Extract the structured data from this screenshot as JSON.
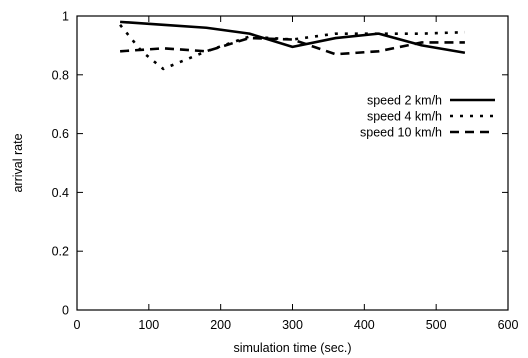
{
  "chart_data": {
    "type": "line",
    "title": "",
    "xlabel": "simulation time (sec.)",
    "ylabel": "arrival rate",
    "xlim": [
      0,
      600
    ],
    "ylim": [
      0,
      1
    ],
    "x_ticks": [
      0,
      100,
      200,
      300,
      400,
      500,
      600
    ],
    "y_ticks": [
      0,
      0.2,
      0.4,
      0.6,
      0.8,
      1
    ],
    "x_tick_labels": [
      "0",
      "100",
      "200",
      "300",
      "400",
      "500",
      "600"
    ],
    "y_tick_labels": [
      "0",
      "0.2",
      "0.4",
      "0.6",
      "0.8",
      "1"
    ],
    "grid": false,
    "legend_position": "right",
    "series": [
      {
        "name": "speed 2 km/h",
        "style": "solid",
        "color": "#000000",
        "x": [
          60,
          120,
          180,
          240,
          300,
          360,
          420,
          480,
          540
        ],
        "y": [
          0.98,
          0.97,
          0.96,
          0.94,
          0.895,
          0.925,
          0.94,
          0.9,
          0.875
        ]
      },
      {
        "name": "speed 4 km/h",
        "style": "dotted",
        "color": "#000000",
        "x": [
          60,
          90,
          120,
          180,
          240,
          300,
          360,
          420,
          480,
          540
        ],
        "y": [
          0.97,
          0.88,
          0.82,
          0.88,
          0.93,
          0.92,
          0.94,
          0.94,
          0.94,
          0.945
        ]
      },
      {
        "name": "speed 10 km/h",
        "style": "dashed",
        "color": "#000000",
        "x": [
          60,
          120,
          180,
          240,
          300,
          360,
          420,
          480,
          540
        ],
        "y": [
          0.88,
          0.89,
          0.88,
          0.925,
          0.92,
          0.87,
          0.88,
          0.91,
          0.91
        ]
      }
    ]
  }
}
